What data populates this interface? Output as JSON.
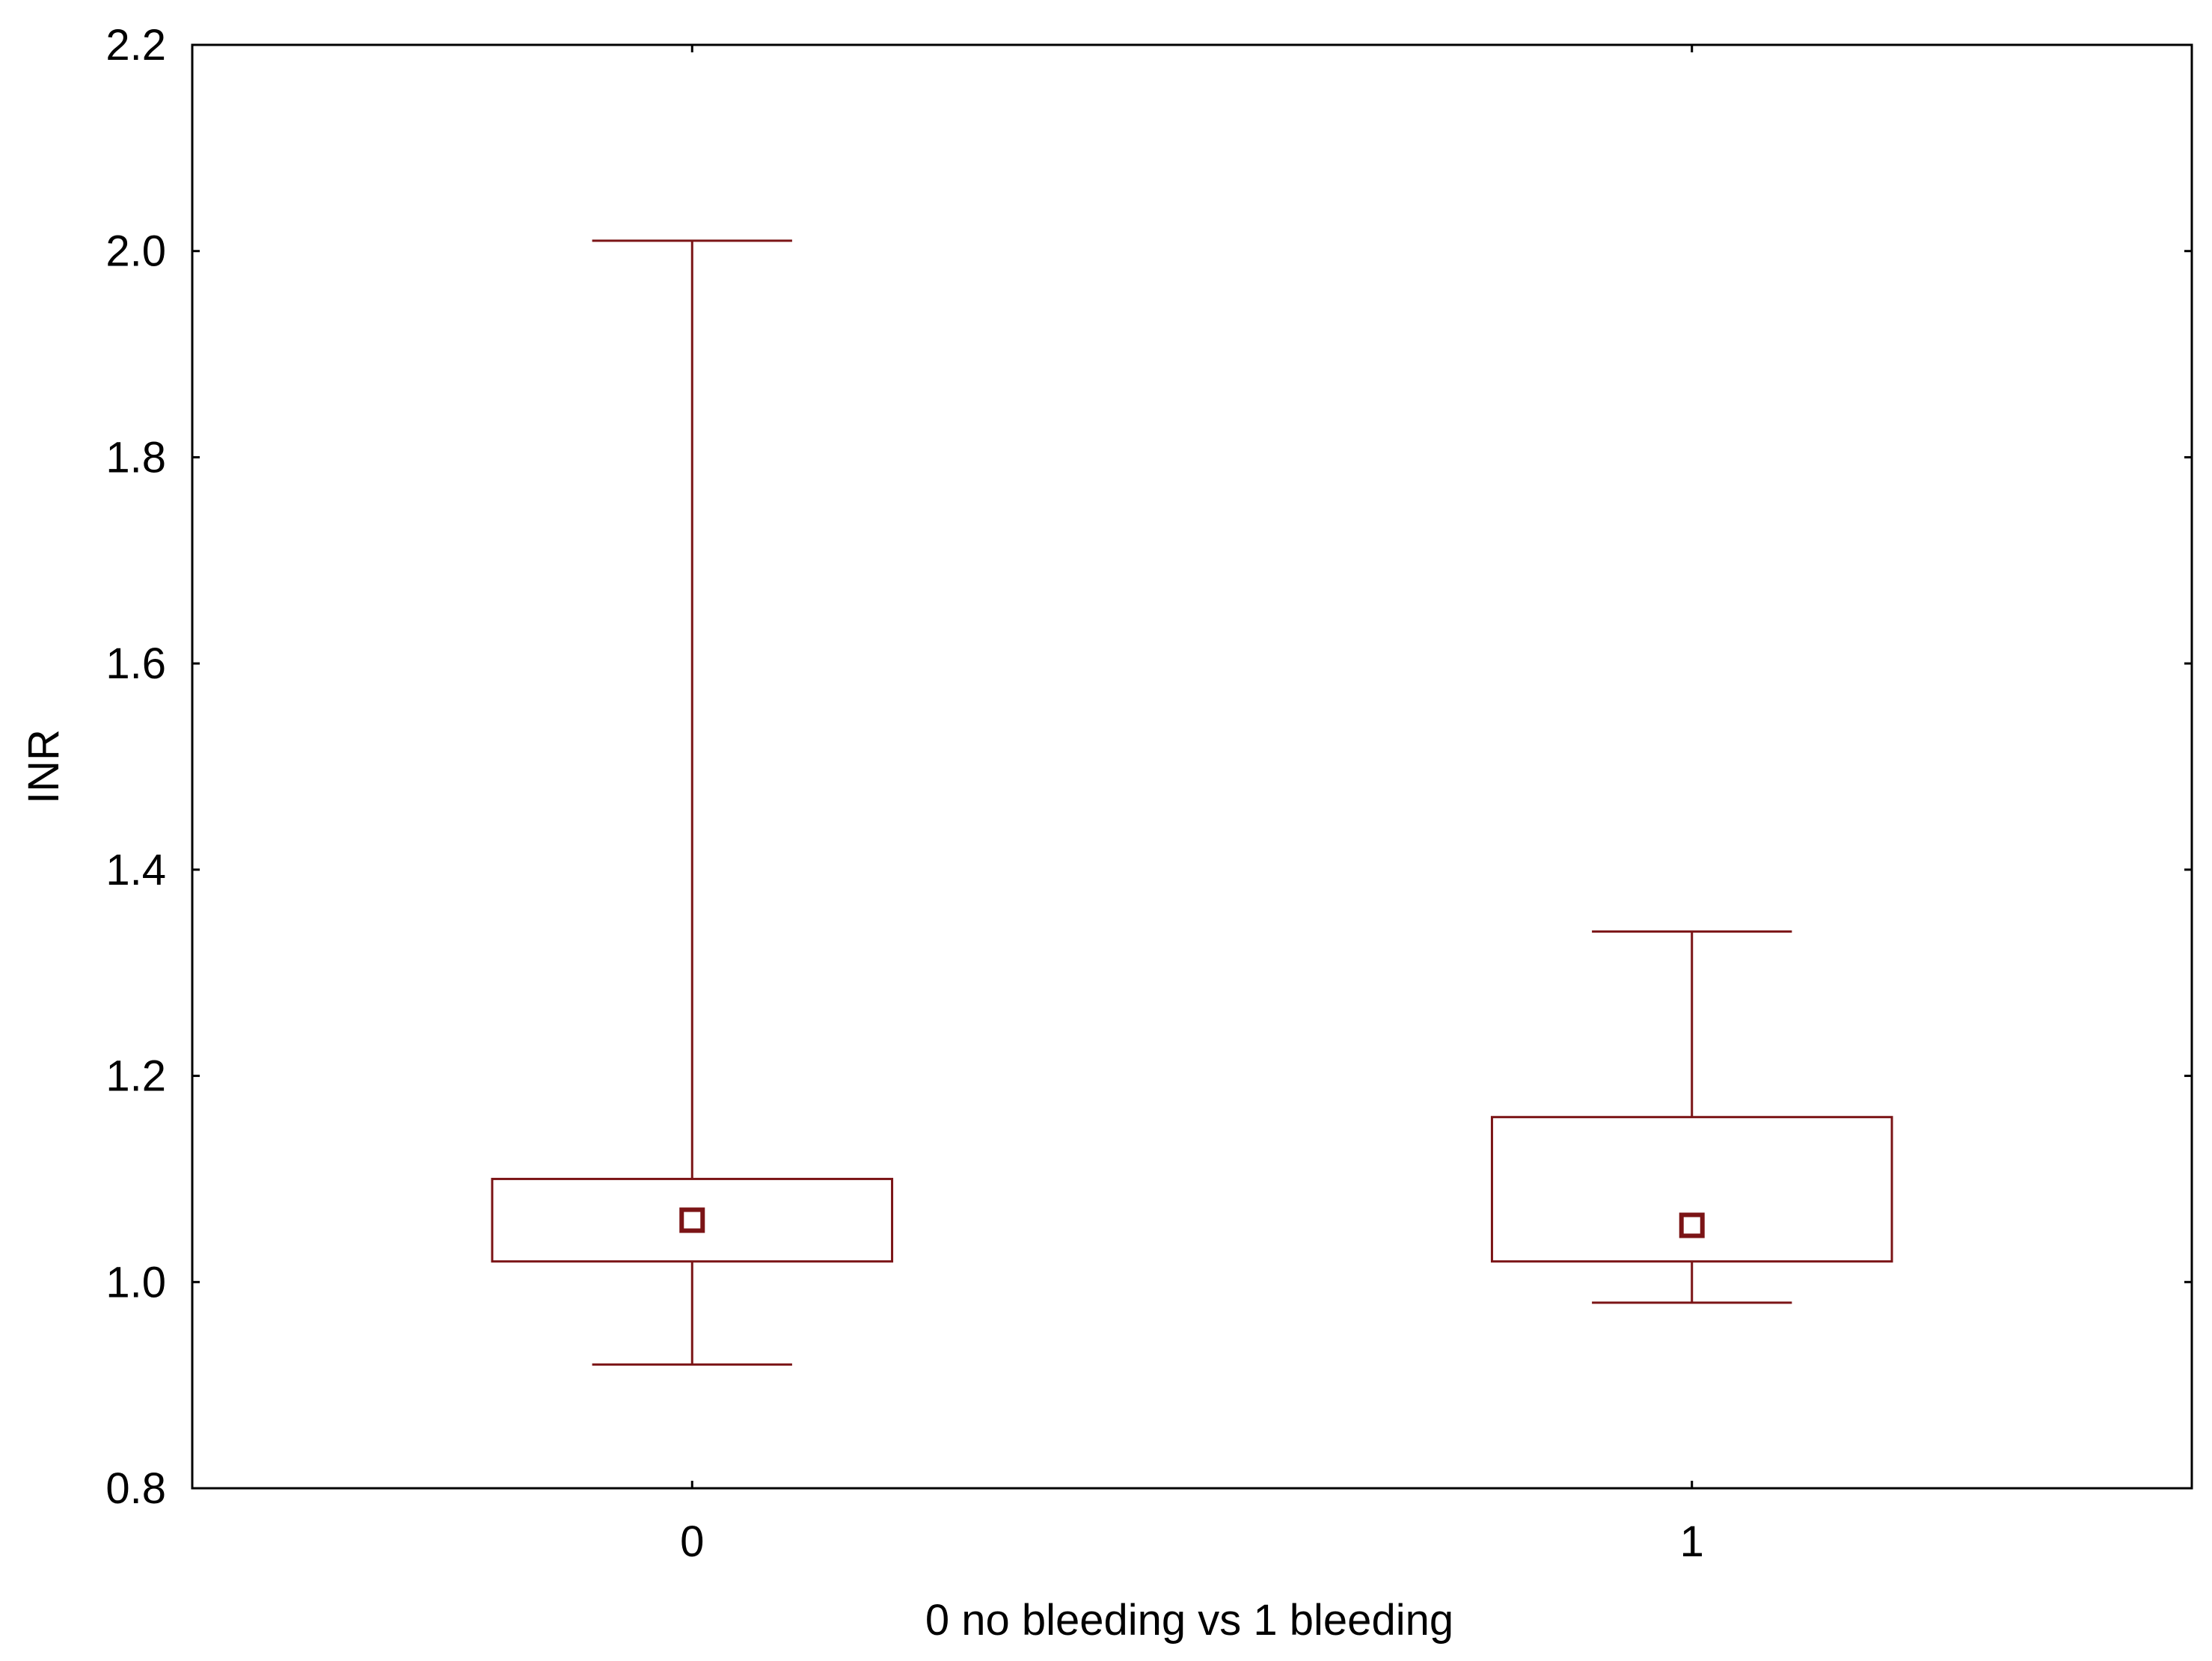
{
  "chart_data": {
    "type": "box",
    "title": "",
    "xlabel": "0 no bleeding vs 1 bleeding",
    "ylabel": "INR",
    "ylim": [
      0.8,
      2.2
    ],
    "yticks": [
      "0.8",
      "1.0",
      "1.2",
      "1.4",
      "1.6",
      "1.8",
      "2.0",
      "2.2"
    ],
    "categories": [
      "0",
      "1"
    ],
    "groups": [
      {
        "category": "0",
        "whisker_low": 0.92,
        "box_low": 1.02,
        "center": 1.06,
        "box_high": 1.1,
        "whisker_high": 2.01
      },
      {
        "category": "1",
        "whisker_low": 0.98,
        "box_low": 1.02,
        "center": 1.055,
        "box_high": 1.16,
        "whisker_high": 1.34
      }
    ],
    "grid": false,
    "legend": "none",
    "color": "#7b1416"
  }
}
